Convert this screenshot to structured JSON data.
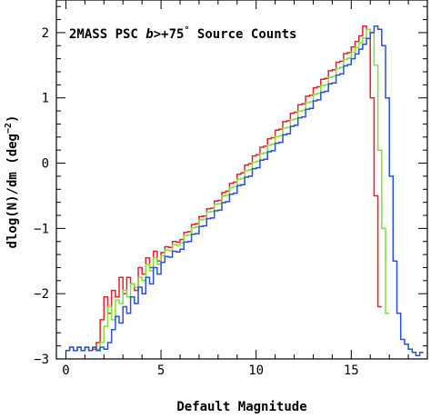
{
  "chart_data": {
    "type": "line",
    "title": {
      "prefix": "2MASS PSC ",
      "italic_var": "b",
      "relation": ">+75",
      "degree": "°",
      "suffix": " Source Counts"
    },
    "xlabel": "Default Magnitude",
    "ylabel": {
      "text": "dlog(N)/dm (deg",
      "sup": "−2",
      "close": ")"
    },
    "xlim": [
      -0.5,
      19
    ],
    "ylim": [
      -3,
      2.5
    ],
    "xticks": [
      0,
      5,
      10,
      15
    ],
    "yticks": [
      -3,
      -2,
      -1,
      0,
      1,
      2
    ],
    "grid": false,
    "style": "step",
    "bin_width": 0.2,
    "series": [
      {
        "color": "#e8202a",
        "x": [
          0,
          1.4,
          1.6,
          1.8,
          2,
          2.2,
          2.4,
          2.6,
          2.8,
          3,
          3.2,
          3.4,
          3.6,
          3.8,
          4,
          4.2,
          4.4,
          4.6,
          4.8,
          5,
          6,
          8,
          10,
          12,
          14,
          15,
          15.4,
          15.6,
          15.8,
          16,
          16.2,
          16.4,
          16.6
        ],
        "values": [
          -2.85,
          -2.85,
          -2.75,
          -2.4,
          -2.05,
          -2.3,
          -1.95,
          -2.05,
          -1.75,
          -2.0,
          -1.75,
          -1.85,
          -1.95,
          -1.6,
          -1.7,
          -1.45,
          -1.6,
          -1.35,
          -1.5,
          -1.35,
          -1.15,
          -0.55,
          0.15,
          0.8,
          1.45,
          1.78,
          1.95,
          2.1,
          2.05,
          1.0,
          -0.5,
          -2.2,
          -3
        ]
      },
      {
        "color": "#7ee03a",
        "x": [
          0,
          1.6,
          1.8,
          2,
          2.2,
          2.4,
          2.6,
          2.8,
          3,
          3.2,
          3.4,
          3.6,
          3.8,
          4,
          4.2,
          4.4,
          4.6,
          4.8,
          5,
          6,
          8,
          10,
          12,
          14,
          15,
          15.6,
          15.8,
          16,
          16.2,
          16.4,
          16.6,
          16.8,
          17
        ],
        "values": [
          -2.85,
          -2.85,
          -2.75,
          -2.5,
          -2.2,
          -2.4,
          -2.1,
          -2.15,
          -1.95,
          -2.05,
          -1.85,
          -1.9,
          -1.75,
          -1.8,
          -1.55,
          -1.65,
          -1.45,
          -1.55,
          -1.4,
          -1.2,
          -0.6,
          0.05,
          0.7,
          1.35,
          1.7,
          1.92,
          2.05,
          2.0,
          1.5,
          0.2,
          -1.0,
          -2.3,
          -3
        ]
      },
      {
        "color": "#2a4fd8",
        "x": [
          0,
          2.0,
          2.2,
          2.4,
          2.6,
          2.8,
          3,
          3.2,
          3.4,
          3.6,
          3.8,
          4,
          4.2,
          4.4,
          4.6,
          4.8,
          5,
          6,
          8,
          10,
          12,
          14,
          15,
          15.6,
          16,
          16.2,
          16.4,
          16.6,
          16.8,
          17,
          17.2,
          17.4,
          17.6,
          18,
          18.4,
          18.8
        ],
        "values": [
          -2.85,
          -2.85,
          -2.75,
          -2.55,
          -2.35,
          -2.45,
          -2.2,
          -2.3,
          -2.05,
          -2.15,
          -1.9,
          -2.0,
          -1.75,
          -1.85,
          -1.6,
          -1.7,
          -1.5,
          -1.3,
          -0.7,
          -0.05,
          0.6,
          1.25,
          1.6,
          1.82,
          2.0,
          2.1,
          2.05,
          1.8,
          1.0,
          -0.2,
          -1.5,
          -2.3,
          -2.7,
          -2.85,
          -2.95,
          -2.85
        ]
      }
    ]
  }
}
